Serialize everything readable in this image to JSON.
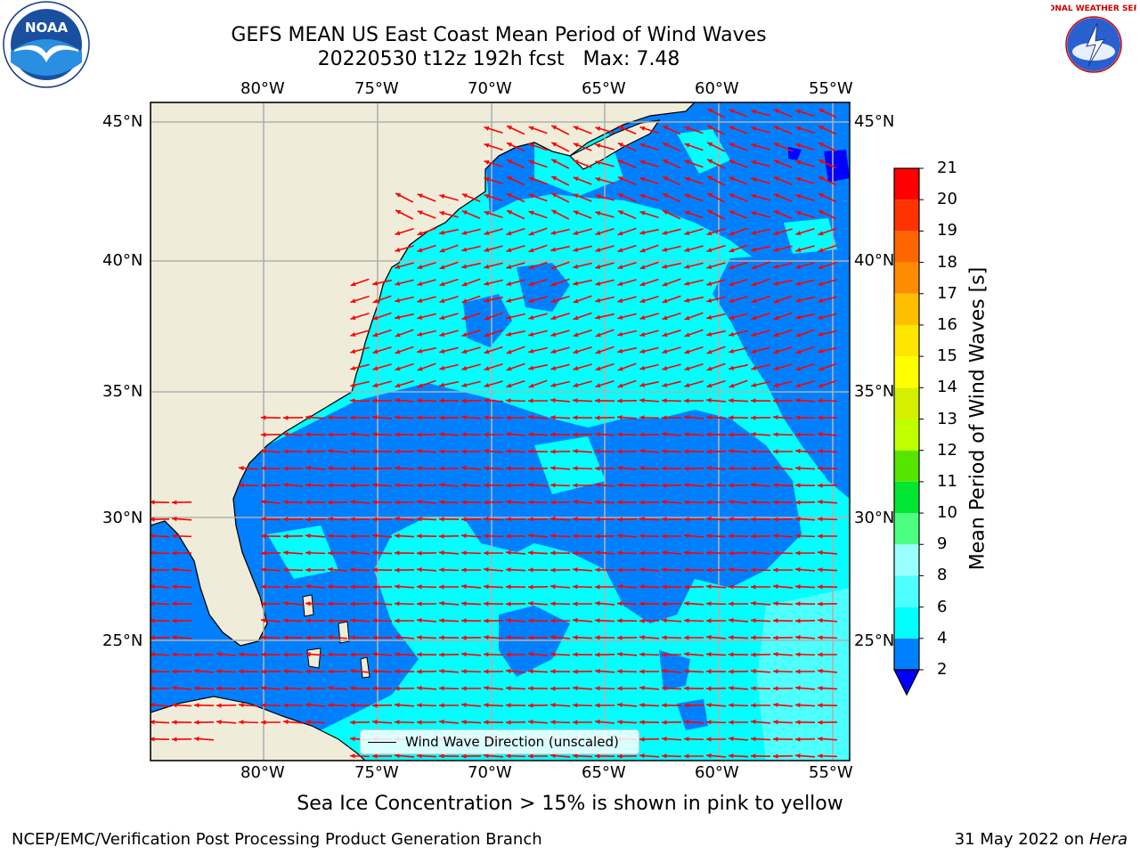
{
  "title": "GEFS MEAN US East Coast Mean Period of Wind Waves",
  "subtitle_line": "20220530 t12z 192h fcst   Max: 7.48",
  "sea_ice_note": "Sea Ice Concentration > 15% is shown in pink to yellow",
  "footer": {
    "left": "NCEP/EMC/Verification Post Processing Product Generation Branch",
    "right_prefix": "31 May 2022 on ",
    "right_machine": "Hera"
  },
  "logos": {
    "noaa": "NOAA",
    "nws": "NATIONAL WEATHER SERVICE"
  },
  "map": {
    "lon_ticks": [
      "80°W",
      "75°W",
      "70°W",
      "65°W",
      "60°W",
      "55°W"
    ],
    "lat_ticks": [
      "45°N",
      "40°N",
      "35°N",
      "30°N",
      "25°N"
    ],
    "legend_label": "Wind Wave Direction (unscaled)",
    "colors": {
      "land": "#efedda",
      "ocean_low": "#0080ff",
      "ocean_mid": "#00ffff",
      "arrow": "#ff0000",
      "grid": "#b0b0b0"
    }
  },
  "colorbar": {
    "title": "Mean Period of Wind Waves [s]",
    "tick_labels": [
      "2",
      "4",
      "6",
      "8",
      "9",
      "10",
      "11",
      "12",
      "13",
      "14",
      "15",
      "16",
      "17",
      "18",
      "19",
      "20",
      "21"
    ],
    "bins": [
      {
        "range": "2-4",
        "color": "#0080ff"
      },
      {
        "range": "4-6",
        "color": "#00ffff"
      },
      {
        "range": "6-8",
        "color": "#4dffff"
      },
      {
        "range": "8-9",
        "color": "#99ffff"
      },
      {
        "range": "9-10",
        "color": "#4dff80"
      },
      {
        "range": "10-11",
        "color": "#00e633"
      },
      {
        "range": "11-12",
        "color": "#55e600"
      },
      {
        "range": "12-13",
        "color": "#bfff00"
      },
      {
        "range": "13-14",
        "color": "#d4f000"
      },
      {
        "range": "14-15",
        "color": "#ffff00"
      },
      {
        "range": "15-16",
        "color": "#ffe600"
      },
      {
        "range": "16-17",
        "color": "#ffbf00"
      },
      {
        "range": "17-18",
        "color": "#ff8c00"
      },
      {
        "range": "18-19",
        "color": "#ff6600"
      },
      {
        "range": "19-20",
        "color": "#ff3300"
      },
      {
        "range": "20-21",
        "color": "#ff0000"
      }
    ],
    "under_color": "#0000ff"
  }
}
